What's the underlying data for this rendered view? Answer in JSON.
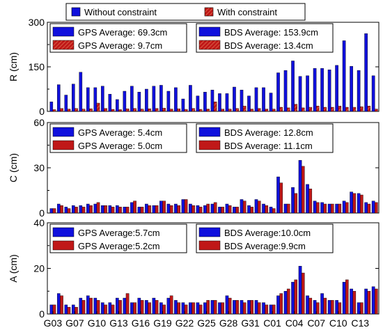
{
  "legend": {
    "without_label": "Without constraint",
    "with_label": "With constraint"
  },
  "colors": {
    "without": "#1010dd",
    "with": "#c01818",
    "hatch": "#e07050"
  },
  "chart_data": [
    {
      "type": "bar",
      "title": "",
      "ylabel": "R (cm)",
      "ylim": [
        0,
        300
      ],
      "yticks": [
        0,
        150,
        300
      ],
      "hatched": true,
      "annotations": {
        "gps_without": "GPS Average: 69.3cm",
        "gps_with": "GPS Average:   9.7cm",
        "bds_without": "BDS Average: 153.9cm",
        "bds_with": "BDS Average:   13.4cm"
      },
      "series": [
        {
          "name": "Without constraint",
          "values": [
            32,
            90,
            55,
            92,
            132,
            80,
            80,
            85,
            58,
            40,
            68,
            85,
            65,
            75,
            85,
            88,
            68,
            80,
            42,
            88,
            52,
            65,
            72,
            60,
            60,
            82,
            72,
            52,
            80,
            80,
            62,
            130,
            138,
            170,
            118,
            120,
            145,
            145,
            140,
            155,
            238,
            152,
            138,
            262,
            120
          ]
        },
        {
          "name": "With constraint",
          "values": [
            6,
            10,
            8,
            10,
            8,
            9,
            28,
            10,
            7,
            6,
            9,
            10,
            8,
            9,
            10,
            11,
            8,
            9,
            7,
            10,
            7,
            8,
            32,
            8,
            8,
            10,
            18,
            8,
            10,
            8,
            8,
            14,
            12,
            24,
            12,
            14,
            18,
            14,
            14,
            18,
            14,
            14,
            16,
            18,
            8
          ]
        }
      ]
    },
    {
      "type": "bar",
      "title": "",
      "ylabel": "C (cm)",
      "ylim": [
        0,
        60
      ],
      "yticks": [
        0,
        30,
        60
      ],
      "hatched": false,
      "annotations": {
        "gps_without": "GPS Average: 5.4cm",
        "gps_with": "GPS Average: 5.0cm",
        "bds_without": "BDS Average: 12.8cm",
        "bds_with": "BDS Average: 11.1cm"
      },
      "series": [
        {
          "name": "Without constraint",
          "values": [
            3,
            6,
            4,
            5,
            5,
            6,
            6,
            5,
            5,
            5,
            4,
            7,
            4,
            6,
            5,
            8,
            6,
            6,
            9,
            6,
            5,
            5,
            6,
            4,
            6,
            4,
            9,
            5,
            9,
            6,
            4,
            24,
            6,
            17,
            35,
            19,
            8,
            7,
            6,
            6,
            8,
            14,
            13,
            7,
            8
          ]
        },
        {
          "name": "With constraint",
          "values": [
            3,
            5,
            3,
            4,
            4,
            5,
            7,
            5,
            4,
            4,
            4,
            8,
            4,
            5,
            5,
            8,
            5,
            5,
            9,
            5,
            4,
            6,
            7,
            4,
            5,
            4,
            8,
            4,
            8,
            5,
            3,
            20,
            6,
            13,
            31,
            16,
            7,
            6,
            6,
            6,
            7,
            13,
            12,
            6,
            7
          ]
        }
      ]
    },
    {
      "type": "bar",
      "title": "",
      "ylabel": "A (cm)",
      "ylim": [
        0,
        40
      ],
      "yticks": [
        0,
        20,
        40
      ],
      "hatched": false,
      "annotations": {
        "gps_without": "GPS Average:5.7cm",
        "gps_with": "GPS Average:5.2cm",
        "bds_without": "BDS Average:10.0cm",
        "bds_with": "BDS Average:9.9cm"
      },
      "series": [
        {
          "name": "Without constraint",
          "values": [
            4,
            9,
            4,
            4,
            7,
            8,
            7,
            5,
            5,
            7,
            7,
            5,
            7,
            6,
            7,
            5,
            7,
            6,
            5,
            5,
            5,
            5,
            6,
            5,
            8,
            6,
            6,
            6,
            6,
            5,
            4,
            8,
            10,
            14,
            21,
            8,
            6,
            9,
            6,
            6,
            14,
            11,
            5,
            11,
            12
          ]
        },
        {
          "name": "With constraint",
          "values": [
            4,
            8,
            3,
            3,
            6,
            7,
            6,
            4,
            4,
            6,
            9,
            5,
            6,
            5,
            6,
            4,
            8,
            5,
            4,
            5,
            4,
            6,
            6,
            5,
            7,
            6,
            5,
            6,
            5,
            4,
            4,
            9,
            11,
            15,
            18,
            7,
            5,
            7,
            6,
            5,
            15,
            10,
            5,
            10,
            11
          ]
        }
      ]
    }
  ],
  "xticks": [
    "G03",
    "G07",
    "G10",
    "G13",
    "G16",
    "G19",
    "G22",
    "G25",
    "G28",
    "G31",
    "C01",
    "C04",
    "C07",
    "C10",
    "C13"
  ]
}
